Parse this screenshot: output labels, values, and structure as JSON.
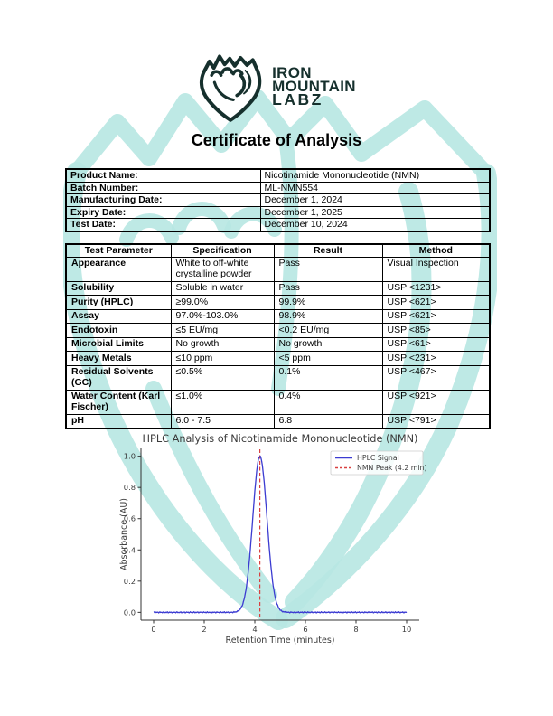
{
  "logo": {
    "lines": [
      "IRON",
      "MOUNTAIN",
      "LABZ"
    ]
  },
  "title": "Certificate of Analysis",
  "colors": {
    "logo_dark": "#16302d",
    "watermark_teal": "#b7e7e2",
    "table_border": "#000000",
    "chart_text": "#3a3a3a",
    "hplc_signal_blue": "#3b3bd1",
    "nmn_peak_red": "#d94040"
  },
  "info_table": {
    "rows": [
      {
        "label": "Product Name:",
        "value": "Nicotinamide Mononucleotide (NMN)"
      },
      {
        "label": "Batch Number:",
        "value": "ML-NMN554"
      },
      {
        "label": "Manufacturing Date:",
        "value": "December 1, 2024"
      },
      {
        "label": "Expiry Date:",
        "value": "December 1, 2025"
      },
      {
        "label": "Test Date:",
        "value": "December 10, 2024"
      }
    ]
  },
  "test_table": {
    "headers": [
      "Test Parameter",
      "Specification",
      "Result",
      "Method"
    ],
    "rows": [
      [
        "Appearance",
        "White to off-white crystalline powder",
        "Pass",
        "Visual Inspection"
      ],
      [
        "Solubility",
        "Soluble in water",
        "Pass",
        "USP <1231>"
      ],
      [
        "Purity (HPLC)",
        "≥99.0%",
        "99.9%",
        "USP <621>"
      ],
      [
        "Assay",
        "97.0%-103.0%",
        "98.9%",
        "USP <621>"
      ],
      [
        "Endotoxin",
        "≤5 EU/mg",
        "<0.2 EU/mg",
        "USP <85>"
      ],
      [
        "Microbial Limits",
        "No growth",
        "No growth",
        "USP <61>"
      ],
      [
        "Heavy Metals",
        "≤10 ppm",
        "<5 ppm",
        "USP <231>"
      ],
      [
        "Residual Solvents (GC)",
        "≤0.5%",
        "0.1%",
        "USP <467>"
      ],
      [
        "Water Content (Karl Fischer)",
        "≤1.0%",
        "0.4%",
        "USP <921>"
      ],
      [
        "pH",
        "6.0 - 7.5",
        "6.8",
        "USP <791>"
      ]
    ]
  },
  "chart_data": {
    "type": "line",
    "title": "HPLC Analysis of Nicotinamide Mononucleotide (NMN)",
    "xlabel": "Retention Time (minutes)",
    "ylabel": "Absorbance (AU)",
    "xlim": [
      -0.5,
      10.5
    ],
    "ylim": [
      -0.05,
      1.05
    ],
    "xticks": [
      0,
      2,
      4,
      6,
      8,
      10
    ],
    "yticks": [
      "0.0",
      "0.2",
      "0.4",
      "0.6",
      "0.8",
      "1.0"
    ],
    "grid": false,
    "legend_position": "upper right",
    "series": [
      {
        "name": "HPLC Signal",
        "type": "gaussian_peak",
        "color": "#3b3bd1",
        "linestyle": "solid",
        "x_range": [
          0,
          10
        ],
        "peak_center": 4.2,
        "peak_height": 1.0,
        "peak_sigma": 0.28,
        "baseline": 0.0,
        "noise_amp": 0.004
      },
      {
        "name": "NMN Peak (4.2 min)",
        "type": "vline",
        "color": "#d94040",
        "linestyle": "dashed",
        "x": 4.2
      }
    ]
  }
}
